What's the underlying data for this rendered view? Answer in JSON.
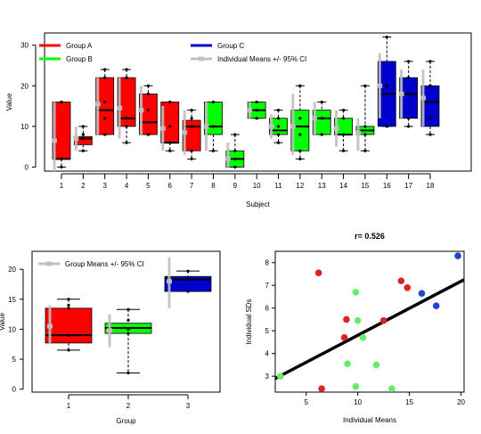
{
  "colors": {
    "group_a": "#ff0000",
    "group_b": "#00ff00",
    "group_c": "#0000cc",
    "mean_ci": "#c0c0c0",
    "scatter_a": "#dd2222",
    "scatter_b": "#66ee66",
    "scatter_c": "#2244cc",
    "fit_line": "#000000"
  },
  "chart_data": [
    {
      "type": "boxplot",
      "xlabel": "Subject",
      "ylabel": "Value",
      "ylim": [
        -1,
        33
      ],
      "yticks": [
        0,
        10,
        20,
        30
      ],
      "categories": [
        "1",
        "2",
        "3",
        "4",
        "5",
        "6",
        "7",
        "8",
        "9",
        "10",
        "11",
        "12",
        "13",
        "14",
        "15",
        "16",
        "17",
        "18"
      ],
      "legend": {
        "placement": "top",
        "entries": [
          {
            "label": "Group A",
            "color_key": "group_a"
          },
          {
            "label": "Group B",
            "color_key": "group_b"
          },
          {
            "label": "Group C",
            "color_key": "group_c"
          },
          {
            "label": "Individual Means +/- 95% CI",
            "color_key": "mean_ci"
          }
        ]
      },
      "boxes": [
        {
          "group": "A",
          "min": 0,
          "q1": 2,
          "median": 2,
          "q3": 16,
          "max": 16,
          "points": [
            0,
            2,
            16,
            16
          ],
          "mean": 6.5,
          "ci": [
            -1,
            16
          ]
        },
        {
          "group": "A",
          "min": 4,
          "q1": 5.5,
          "median": 7,
          "q3": 7.5,
          "max": 10,
          "points": [
            4,
            7,
            8,
            10
          ],
          "mean": 7,
          "ci": [
            4,
            10
          ]
        },
        {
          "group": "A",
          "min": 8,
          "q1": 8,
          "median": 14,
          "q3": 22,
          "max": 24,
          "points": [
            8,
            12,
            16,
            22,
            24
          ],
          "mean": 15.5,
          "ci": [
            8,
            22
          ]
        },
        {
          "group": "A",
          "min": 6,
          "q1": 10,
          "median": 12,
          "q3": 22,
          "max": 24,
          "points": [
            6,
            10,
            12,
            22,
            24
          ],
          "mean": 14.5,
          "ci": [
            7,
            22
          ]
        },
        {
          "group": "A",
          "min": 8,
          "q1": 8,
          "median": 11,
          "q3": 18,
          "max": 20,
          "points": [
            8,
            14,
            18,
            20
          ],
          "mean": 14,
          "ci": [
            8,
            20
          ]
        },
        {
          "group": "A",
          "min": 4,
          "q1": 6,
          "median": 6,
          "q3": 16,
          "max": 16,
          "points": [
            4,
            6,
            10,
            16
          ],
          "mean": 9.5,
          "ci": [
            4,
            15
          ]
        },
        {
          "group": "A",
          "min": 2,
          "q1": 4,
          "median": 10,
          "q3": 11.5,
          "max": 14,
          "points": [
            2,
            4,
            10,
            12,
            14
          ],
          "mean": 8.5,
          "ci": [
            3,
            14
          ]
        },
        {
          "group": "B",
          "min": 4,
          "q1": 8,
          "median": 10,
          "q3": 16,
          "max": 16,
          "points": [
            4,
            10,
            16
          ],
          "mean": 10,
          "ci": [
            4,
            16
          ]
        },
        {
          "group": "B",
          "min": 0,
          "q1": 0,
          "median": 2,
          "q3": 4,
          "max": 8,
          "points": [
            0,
            2,
            4,
            8
          ],
          "mean": 2,
          "ci": [
            0,
            6
          ]
        },
        {
          "group": "B",
          "min": 12,
          "q1": 12,
          "median": 14,
          "q3": 16,
          "max": 16,
          "points": [
            12,
            14,
            16
          ],
          "mean": 14,
          "ci": [
            12,
            16
          ]
        },
        {
          "group": "B",
          "min": 6,
          "q1": 8,
          "median": 9,
          "q3": 12,
          "max": 14,
          "points": [
            6,
            8,
            10,
            12,
            14
          ],
          "mean": 10,
          "ci": [
            7,
            13
          ]
        },
        {
          "group": "B",
          "min": 2,
          "q1": 4,
          "median": 10,
          "q3": 14,
          "max": 20,
          "points": [
            2,
            4,
            8,
            12,
            20
          ],
          "mean": 10,
          "ci": [
            3,
            18
          ]
        },
        {
          "group": "B",
          "min": 8,
          "q1": 8,
          "median": 12,
          "q3": 14,
          "max": 16,
          "points": [
            8,
            12,
            16
          ],
          "mean": 12,
          "ci": [
            8,
            16
          ]
        },
        {
          "group": "B",
          "min": 4,
          "q1": 8,
          "median": 8,
          "q3": 12,
          "max": 14,
          "points": [
            4,
            8,
            12,
            14
          ],
          "mean": 9.5,
          "ci": [
            5,
            14
          ]
        },
        {
          "group": "B",
          "min": 4,
          "q1": 8,
          "median": 9,
          "q3": 10,
          "max": 20,
          "points": [
            4,
            8,
            10,
            20
          ],
          "mean": 8.5,
          "ci": [
            4,
            12
          ]
        },
        {
          "group": "C",
          "min": 10,
          "q1": 10,
          "median": 18,
          "q3": 26,
          "max": 32,
          "points": [
            10,
            20,
            32
          ],
          "mean": 20,
          "ci": [
            12,
            28
          ]
        },
        {
          "group": "C",
          "min": 10,
          "q1": 12,
          "median": 18,
          "q3": 22,
          "max": 26,
          "points": [
            10,
            12,
            18,
            22,
            26
          ],
          "mean": 18,
          "ci": [
            12,
            24
          ]
        },
        {
          "group": "C",
          "min": 8,
          "q1": 10,
          "median": 16,
          "q3": 20,
          "max": 26,
          "points": [
            8,
            12,
            20,
            26
          ],
          "mean": 17,
          "ci": [
            10,
            24
          ]
        }
      ]
    },
    {
      "type": "boxplot",
      "xlabel": "Group",
      "ylabel": "Value",
      "ylim": [
        -0.5,
        23
      ],
      "yticks": [
        0,
        5,
        10,
        15,
        20
      ],
      "categories": [
        "1",
        "2",
        "3"
      ],
      "legend": {
        "placement": "top-left",
        "entries": [
          {
            "label": "Group Means +/- 95% CI",
            "color_key": "mean_ci"
          }
        ]
      },
      "boxes": [
        {
          "group": "A",
          "min": 6.5,
          "q1": 7.7,
          "median": 9,
          "q3": 13.5,
          "max": 15,
          "points": [
            6.5,
            9,
            13.5,
            14,
            15
          ],
          "mean": 10.5,
          "ci": [
            7.5,
            14
          ]
        },
        {
          "group": "B",
          "min": 2.7,
          "q1": 9.3,
          "median": 10.2,
          "q3": 11,
          "max": 13.3,
          "points": [
            2.7,
            9.3,
            10,
            11.5,
            13.3
          ],
          "mean": 9.8,
          "ci": [
            7,
            12.5
          ]
        },
        {
          "group": "C",
          "min": 16.3,
          "q1": 16.3,
          "median": 18.3,
          "q3": 18.8,
          "max": 19.7,
          "points": [
            16.3,
            18.3,
            19.7
          ],
          "mean": 18,
          "ci": [
            13.5,
            22
          ]
        }
      ]
    },
    {
      "type": "scatter",
      "title": "r= 0.526",
      "xlabel": "Individual Means",
      "ylabel": "Individual SDs",
      "xlim": [
        2,
        20.3
      ],
      "ylim": [
        2.3,
        8.5
      ],
      "xticks": [
        5,
        10,
        15,
        20
      ],
      "yticks": [
        3,
        4,
        5,
        6,
        7,
        8
      ],
      "fit_line": {
        "x": [
          2,
          20.3
        ],
        "y": [
          2.9,
          7.25
        ]
      },
      "points": [
        {
          "x": 6.2,
          "y": 7.55,
          "group": "A"
        },
        {
          "x": 6.5,
          "y": 2.45,
          "group": "A"
        },
        {
          "x": 8.7,
          "y": 4.7,
          "group": "A"
        },
        {
          "x": 8.9,
          "y": 5.5,
          "group": "A"
        },
        {
          "x": 12.5,
          "y": 5.45,
          "group": "A"
        },
        {
          "x": 14.2,
          "y": 7.2,
          "group": "A"
        },
        {
          "x": 14.8,
          "y": 6.9,
          "group": "A"
        },
        {
          "x": 2.5,
          "y": 3.0,
          "group": "B"
        },
        {
          "x": 9.0,
          "y": 3.55,
          "group": "B"
        },
        {
          "x": 9.8,
          "y": 6.7,
          "group": "B"
        },
        {
          "x": 9.8,
          "y": 2.55,
          "group": "B"
        },
        {
          "x": 10.0,
          "y": 5.45,
          "group": "B"
        },
        {
          "x": 10.5,
          "y": 4.7,
          "group": "B"
        },
        {
          "x": 11.8,
          "y": 3.5,
          "group": "B"
        },
        {
          "x": 13.3,
          "y": 2.45,
          "group": "B"
        },
        {
          "x": 16.2,
          "y": 6.65,
          "group": "C"
        },
        {
          "x": 17.6,
          "y": 6.1,
          "group": "C"
        },
        {
          "x": 19.7,
          "y": 8.3,
          "group": "C"
        }
      ]
    }
  ]
}
